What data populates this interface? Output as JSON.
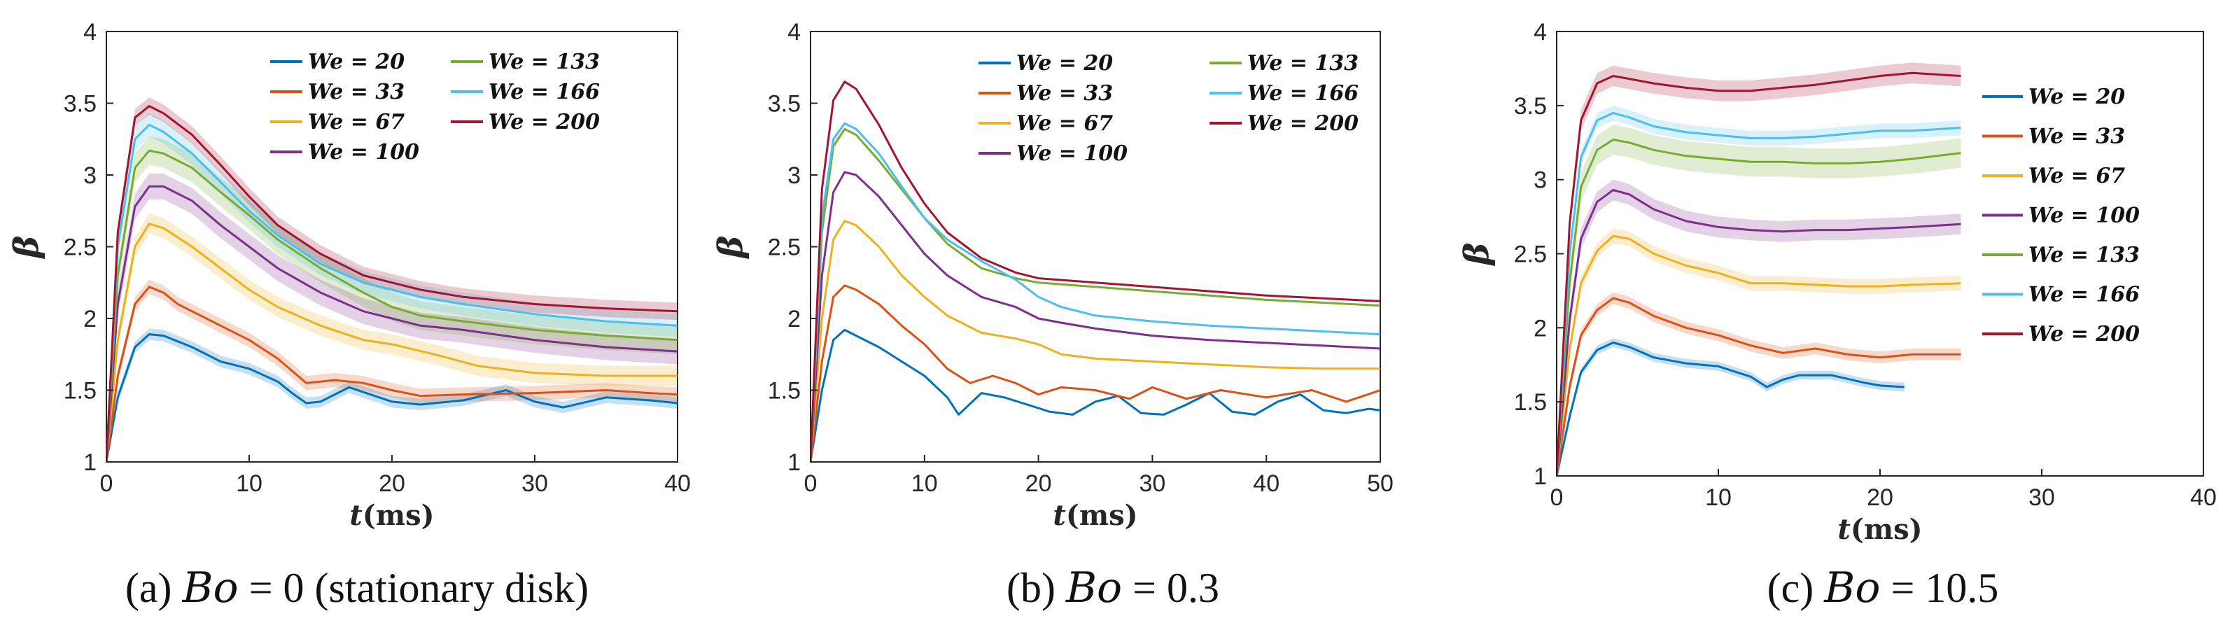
{
  "chart_data": [
    {
      "type": "line",
      "panel": "a",
      "caption_prefix": "(a)",
      "caption_math": "Bo",
      "caption_rest": "= 0 (stationary disk)",
      "xlabel_var": "t",
      "xlabel_unit": "(ms)",
      "ylabel": "β",
      "xlim": [
        0,
        40
      ],
      "ylim": [
        1,
        4
      ],
      "xticks": [
        "0",
        "10",
        "20",
        "30",
        "40"
      ],
      "yticks": [
        "1",
        "1.5",
        "2",
        "2.5",
        "3",
        "3.5",
        "4"
      ],
      "legend_columns": 2,
      "legend_position": "top-right",
      "series": [
        {
          "name": "We = 20",
          "color": "#0072BD",
          "band": 0.04,
          "x": [
            0,
            0.8,
            2,
            3,
            4,
            6,
            8,
            10,
            12,
            13,
            14,
            15,
            17,
            20,
            22,
            25,
            28,
            30,
            32,
            35,
            38,
            40
          ],
          "y": [
            1,
            1.45,
            1.8,
            1.89,
            1.88,
            1.8,
            1.7,
            1.65,
            1.56,
            1.48,
            1.41,
            1.42,
            1.52,
            1.42,
            1.4,
            1.43,
            1.5,
            1.42,
            1.38,
            1.45,
            1.43,
            1.41
          ]
        },
        {
          "name": "We = 33",
          "color": "#D95319",
          "band": 0.05,
          "x": [
            0,
            0.8,
            2,
            3,
            4,
            5,
            8,
            10,
            12,
            14,
            16,
            18,
            20,
            22,
            25,
            30,
            35,
            38,
            40
          ],
          "y": [
            1,
            1.6,
            2.1,
            2.22,
            2.18,
            2.1,
            1.95,
            1.85,
            1.72,
            1.55,
            1.57,
            1.55,
            1.5,
            1.46,
            1.47,
            1.48,
            1.5,
            1.48,
            1.47
          ]
        },
        {
          "name": "We = 67",
          "color": "#EDB120",
          "band": 0.07,
          "x": [
            0,
            0.8,
            2,
            3,
            4,
            6,
            8,
            10,
            12,
            15,
            18,
            20,
            23,
            26,
            30,
            35,
            40
          ],
          "y": [
            1,
            1.85,
            2.5,
            2.66,
            2.63,
            2.5,
            2.35,
            2.2,
            2.08,
            1.95,
            1.85,
            1.82,
            1.75,
            1.67,
            1.62,
            1.6,
            1.6
          ]
        },
        {
          "name": "We = 100",
          "color": "#7E2F8E",
          "band": 0.09,
          "x": [
            0,
            0.8,
            2,
            3,
            4,
            6,
            8,
            10,
            12,
            15,
            18,
            20,
            22,
            25,
            30,
            35,
            40
          ],
          "y": [
            1,
            2.1,
            2.78,
            2.92,
            2.92,
            2.82,
            2.65,
            2.5,
            2.35,
            2.18,
            2.05,
            2.0,
            1.95,
            1.92,
            1.85,
            1.8,
            1.77
          ]
        },
        {
          "name": "We = 133",
          "color": "#77AC30",
          "band": 0.1,
          "x": [
            0,
            0.8,
            2,
            3,
            4,
            6,
            8,
            10,
            12,
            15,
            18,
            20,
            22,
            25,
            30,
            35,
            40
          ],
          "y": [
            1,
            2.3,
            3.05,
            3.17,
            3.15,
            3.05,
            2.88,
            2.72,
            2.55,
            2.35,
            2.18,
            2.08,
            2.02,
            1.98,
            1.92,
            1.88,
            1.85
          ]
        },
        {
          "name": "We = 166",
          "color": "#4DBEEE",
          "band": 0.08,
          "x": [
            0,
            0.8,
            2,
            3,
            4,
            6,
            8,
            10,
            12,
            15,
            18,
            20,
            22,
            25,
            30,
            35,
            40
          ],
          "y": [
            1,
            2.5,
            3.25,
            3.35,
            3.3,
            3.15,
            2.95,
            2.75,
            2.58,
            2.38,
            2.25,
            2.2,
            2.15,
            2.1,
            2.03,
            1.98,
            1.95
          ]
        },
        {
          "name": "We = 200",
          "color": "#A2142F",
          "band": 0.06,
          "x": [
            0,
            0.8,
            2,
            3,
            4,
            6,
            8,
            10,
            12,
            15,
            18,
            20,
            22,
            25,
            30,
            35,
            40
          ],
          "y": [
            1,
            2.6,
            3.4,
            3.48,
            3.43,
            3.28,
            3.07,
            2.85,
            2.65,
            2.45,
            2.3,
            2.25,
            2.2,
            2.15,
            2.1,
            2.07,
            2.05
          ]
        }
      ]
    },
    {
      "type": "line",
      "panel": "b",
      "caption_prefix": "(b)",
      "caption_math": "Bo",
      "caption_rest": "= 0.3",
      "xlabel_var": "t",
      "xlabel_unit": "(ms)",
      "ylabel": "β",
      "xlim": [
        0,
        50
      ],
      "ylim": [
        1,
        4
      ],
      "xticks": [
        "0",
        "10",
        "20",
        "30",
        "40",
        "50"
      ],
      "yticks": [
        "1",
        "1.5",
        "2",
        "2.5",
        "3",
        "3.5",
        "4"
      ],
      "legend_columns": 2,
      "legend_position": "top-right",
      "series": [
        {
          "name": "We = 20",
          "color": "#0072BD",
          "band": 0,
          "x": [
            0,
            1,
            2,
            3,
            4,
            6,
            8,
            10,
            12,
            13,
            15,
            17,
            19,
            21,
            23,
            25,
            27,
            29,
            31,
            33,
            35,
            37,
            39,
            41,
            43,
            45,
            47,
            49,
            50
          ],
          "y": [
            1,
            1.5,
            1.85,
            1.92,
            1.88,
            1.8,
            1.7,
            1.6,
            1.45,
            1.33,
            1.48,
            1.45,
            1.4,
            1.35,
            1.33,
            1.42,
            1.46,
            1.34,
            1.33,
            1.4,
            1.48,
            1.35,
            1.33,
            1.42,
            1.47,
            1.36,
            1.34,
            1.37,
            1.36
          ]
        },
        {
          "name": "We = 33",
          "color": "#D95319",
          "band": 0,
          "x": [
            0,
            1,
            2,
            3,
            4,
            6,
            8,
            10,
            12,
            14,
            16,
            18,
            20,
            22,
            25,
            28,
            30,
            33,
            36,
            40,
            44,
            47,
            50
          ],
          "y": [
            1,
            1.7,
            2.15,
            2.23,
            2.2,
            2.1,
            1.95,
            1.82,
            1.65,
            1.55,
            1.6,
            1.55,
            1.47,
            1.52,
            1.5,
            1.44,
            1.52,
            1.44,
            1.5,
            1.45,
            1.5,
            1.42,
            1.5
          ]
        },
        {
          "name": "We = 67",
          "color": "#EDB120",
          "band": 0,
          "x": [
            0,
            1,
            2,
            3,
            4,
            6,
            8,
            10,
            12,
            15,
            18,
            20,
            22,
            25,
            30,
            35,
            40,
            45,
            50
          ],
          "y": [
            1,
            2.0,
            2.55,
            2.68,
            2.65,
            2.5,
            2.3,
            2.15,
            2.02,
            1.9,
            1.86,
            1.82,
            1.75,
            1.72,
            1.7,
            1.68,
            1.66,
            1.65,
            1.65
          ]
        },
        {
          "name": "We = 100",
          "color": "#7E2F8E",
          "band": 0,
          "x": [
            0,
            1,
            2,
            3,
            4,
            6,
            8,
            10,
            12,
            15,
            18,
            20,
            22,
            25,
            30,
            35,
            40,
            45,
            50
          ],
          "y": [
            1,
            2.3,
            2.88,
            3.02,
            3.0,
            2.85,
            2.65,
            2.45,
            2.3,
            2.15,
            2.08,
            2.0,
            1.97,
            1.93,
            1.88,
            1.85,
            1.83,
            1.81,
            1.79
          ]
        },
        {
          "name": "We = 133",
          "color": "#77AC30",
          "band": 0,
          "x": [
            0,
            1,
            2,
            3,
            4,
            6,
            8,
            10,
            12,
            15,
            18,
            20,
            25,
            30,
            35,
            40,
            45,
            50
          ],
          "y": [
            1,
            2.6,
            3.2,
            3.32,
            3.28,
            3.1,
            2.9,
            2.7,
            2.52,
            2.35,
            2.28,
            2.25,
            2.22,
            2.19,
            2.16,
            2.13,
            2.11,
            2.09
          ]
        },
        {
          "name": "We = 166",
          "color": "#4DBEEE",
          "band": 0,
          "x": [
            0,
            1,
            2,
            3,
            4,
            6,
            8,
            10,
            12,
            15,
            18,
            20,
            22,
            25,
            30,
            35,
            40,
            45,
            50
          ],
          "y": [
            1,
            2.7,
            3.25,
            3.36,
            3.32,
            3.15,
            2.92,
            2.7,
            2.55,
            2.4,
            2.27,
            2.15,
            2.08,
            2.02,
            1.98,
            1.95,
            1.93,
            1.91,
            1.89
          ]
        },
        {
          "name": "We = 200",
          "color": "#A2142F",
          "band": 0,
          "x": [
            0,
            1,
            2,
            3,
            4,
            6,
            8,
            10,
            12,
            15,
            18,
            20,
            25,
            30,
            35,
            40,
            45,
            50
          ],
          "y": [
            1,
            2.9,
            3.52,
            3.65,
            3.6,
            3.35,
            3.05,
            2.8,
            2.6,
            2.42,
            2.32,
            2.28,
            2.25,
            2.22,
            2.19,
            2.16,
            2.14,
            2.12
          ]
        }
      ]
    },
    {
      "type": "line",
      "panel": "c",
      "caption_prefix": "(c)",
      "caption_math": "Bo",
      "caption_rest": "= 10.5",
      "xlabel_var": "t",
      "xlabel_unit": "(ms)",
      "ylabel": "β",
      "xlim": [
        0,
        40
      ],
      "ylim": [
        1,
        4
      ],
      "xticks": [
        "0",
        "10",
        "20",
        "30",
        "40"
      ],
      "yticks": [
        "1",
        "1.5",
        "2",
        "2.5",
        "3",
        "3.5",
        "4"
      ],
      "legend_columns": 1,
      "legend_position": "right, outside",
      "series": [
        {
          "name": "We = 20",
          "color": "#0072BD",
          "band": 0.03,
          "x": [
            0,
            0.8,
            1.5,
            2.5,
            3.5,
            4.5,
            6,
            8,
            10,
            12,
            13,
            14,
            15,
            17,
            19,
            20,
            21.5
          ],
          "y": [
            1,
            1.4,
            1.7,
            1.85,
            1.9,
            1.87,
            1.8,
            1.76,
            1.74,
            1.67,
            1.6,
            1.65,
            1.68,
            1.68,
            1.63,
            1.61,
            1.6
          ]
        },
        {
          "name": "We = 33",
          "color": "#D95319",
          "band": 0.04,
          "x": [
            0,
            0.8,
            1.5,
            2.5,
            3.5,
            4.5,
            6,
            8,
            10,
            12,
            14,
            16,
            18,
            20,
            22,
            25
          ],
          "y": [
            1,
            1.6,
            1.95,
            2.12,
            2.2,
            2.17,
            2.08,
            2.0,
            1.95,
            1.88,
            1.83,
            1.86,
            1.82,
            1.8,
            1.82,
            1.82
          ]
        },
        {
          "name": "We = 67",
          "color": "#EDB120",
          "band": 0.05,
          "x": [
            0,
            0.8,
            1.5,
            2.5,
            3.5,
            4.5,
            6,
            8,
            10,
            12,
            14,
            16,
            18,
            20,
            22,
            25
          ],
          "y": [
            1,
            1.85,
            2.3,
            2.52,
            2.62,
            2.6,
            2.5,
            2.42,
            2.37,
            2.3,
            2.3,
            2.29,
            2.28,
            2.28,
            2.29,
            2.3
          ]
        },
        {
          "name": "We = 100",
          "color": "#7E2F8E",
          "band": 0.07,
          "x": [
            0,
            0.8,
            1.5,
            2.5,
            3.5,
            4.5,
            6,
            8,
            10,
            12,
            14,
            16,
            18,
            20,
            22,
            25
          ],
          "y": [
            1,
            2.05,
            2.6,
            2.85,
            2.93,
            2.9,
            2.8,
            2.72,
            2.68,
            2.66,
            2.65,
            2.66,
            2.66,
            2.67,
            2.68,
            2.7
          ]
        },
        {
          "name": "We = 133",
          "color": "#77AC30",
          "band": 0.1,
          "x": [
            0,
            0.8,
            1.5,
            2.5,
            3.5,
            4.5,
            6,
            8,
            10,
            12,
            14,
            16,
            18,
            20,
            22,
            25
          ],
          "y": [
            1,
            2.3,
            2.95,
            3.2,
            3.27,
            3.25,
            3.2,
            3.16,
            3.14,
            3.12,
            3.12,
            3.11,
            3.11,
            3.12,
            3.14,
            3.18
          ]
        },
        {
          "name": "We = 166",
          "color": "#4DBEEE",
          "band": 0.05,
          "x": [
            0,
            0.8,
            1.5,
            2.5,
            3.5,
            4.5,
            6,
            8,
            10,
            12,
            14,
            16,
            18,
            20,
            22,
            25
          ],
          "y": [
            1,
            2.5,
            3.15,
            3.4,
            3.45,
            3.42,
            3.36,
            3.32,
            3.3,
            3.28,
            3.28,
            3.29,
            3.31,
            3.33,
            3.33,
            3.35
          ]
        },
        {
          "name": "We = 200",
          "color": "#A2142F",
          "band": 0.07,
          "x": [
            0,
            0.8,
            1.5,
            2.5,
            3.5,
            4.5,
            6,
            8,
            10,
            12,
            14,
            16,
            18,
            20,
            22,
            25
          ],
          "y": [
            1,
            2.7,
            3.4,
            3.65,
            3.7,
            3.68,
            3.65,
            3.62,
            3.6,
            3.6,
            3.62,
            3.64,
            3.67,
            3.7,
            3.72,
            3.7
          ]
        }
      ]
    }
  ]
}
